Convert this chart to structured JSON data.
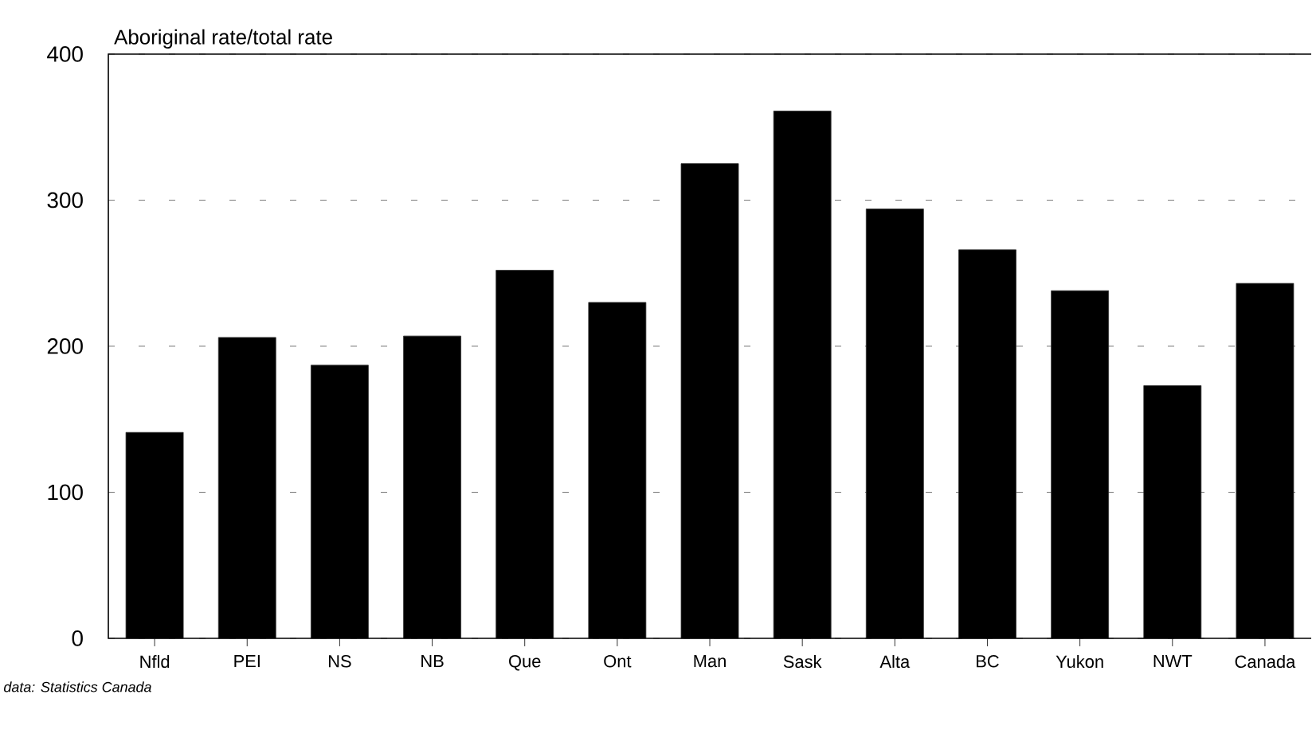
{
  "chart_data": {
    "type": "bar",
    "ylabel": "Aboriginal rate/total rate",
    "categories": [
      "Nfld",
      "PEI",
      "NS",
      "NB",
      "Que",
      "Ont",
      "Man",
      "Sask",
      "Alta",
      "BC",
      "Yukon",
      "NWT",
      "Canada"
    ],
    "values": [
      141,
      206,
      187,
      207,
      252,
      230,
      325,
      361,
      294,
      266,
      238,
      173,
      243
    ],
    "color": "#000000",
    "ylim": [
      0,
      400
    ],
    "yticks": [
      0,
      100,
      200,
      300,
      400
    ],
    "grid": "y",
    "annotations": [
      "*data: Statistics Canada*"
    ]
  }
}
